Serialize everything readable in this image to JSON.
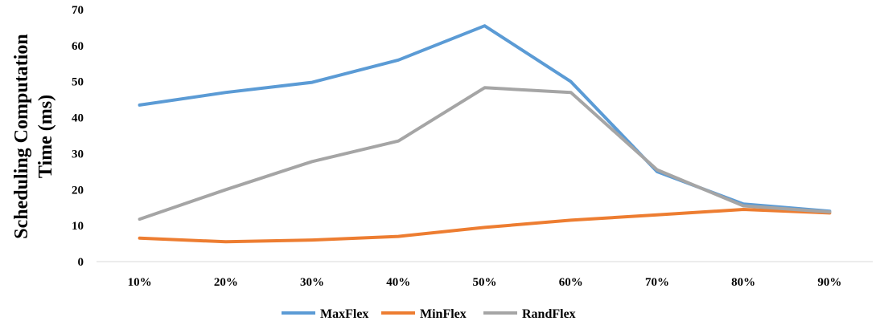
{
  "chart_data": {
    "type": "line",
    "title": "",
    "xlabel": "",
    "ylabel_lines": [
      "Scheduling Computation",
      "Time (ms)"
    ],
    "categories": [
      "10%",
      "20%",
      "30%",
      "40%",
      "50%",
      "60%",
      "70%",
      "80%",
      "90%"
    ],
    "ylim": [
      0,
      70
    ],
    "yticks": [
      0,
      10,
      20,
      30,
      40,
      50,
      60,
      70
    ],
    "grid": false,
    "legend_position": "bottom",
    "series": [
      {
        "name": "MaxFlex",
        "color": "#5B9BD5",
        "values": [
          43.5,
          47,
          49.8,
          56,
          65.5,
          50,
          25,
          16,
          14
        ]
      },
      {
        "name": "MinFlex",
        "color": "#ED7D31",
        "values": [
          6.5,
          5.5,
          6,
          7,
          9.5,
          11.5,
          13,
          14.5,
          13.5
        ]
      },
      {
        "name": "RandFlex",
        "color": "#A5A5A5",
        "values": [
          11.8,
          20,
          27.8,
          33.5,
          48.3,
          47,
          25.5,
          15.5,
          13.8
        ]
      }
    ]
  }
}
